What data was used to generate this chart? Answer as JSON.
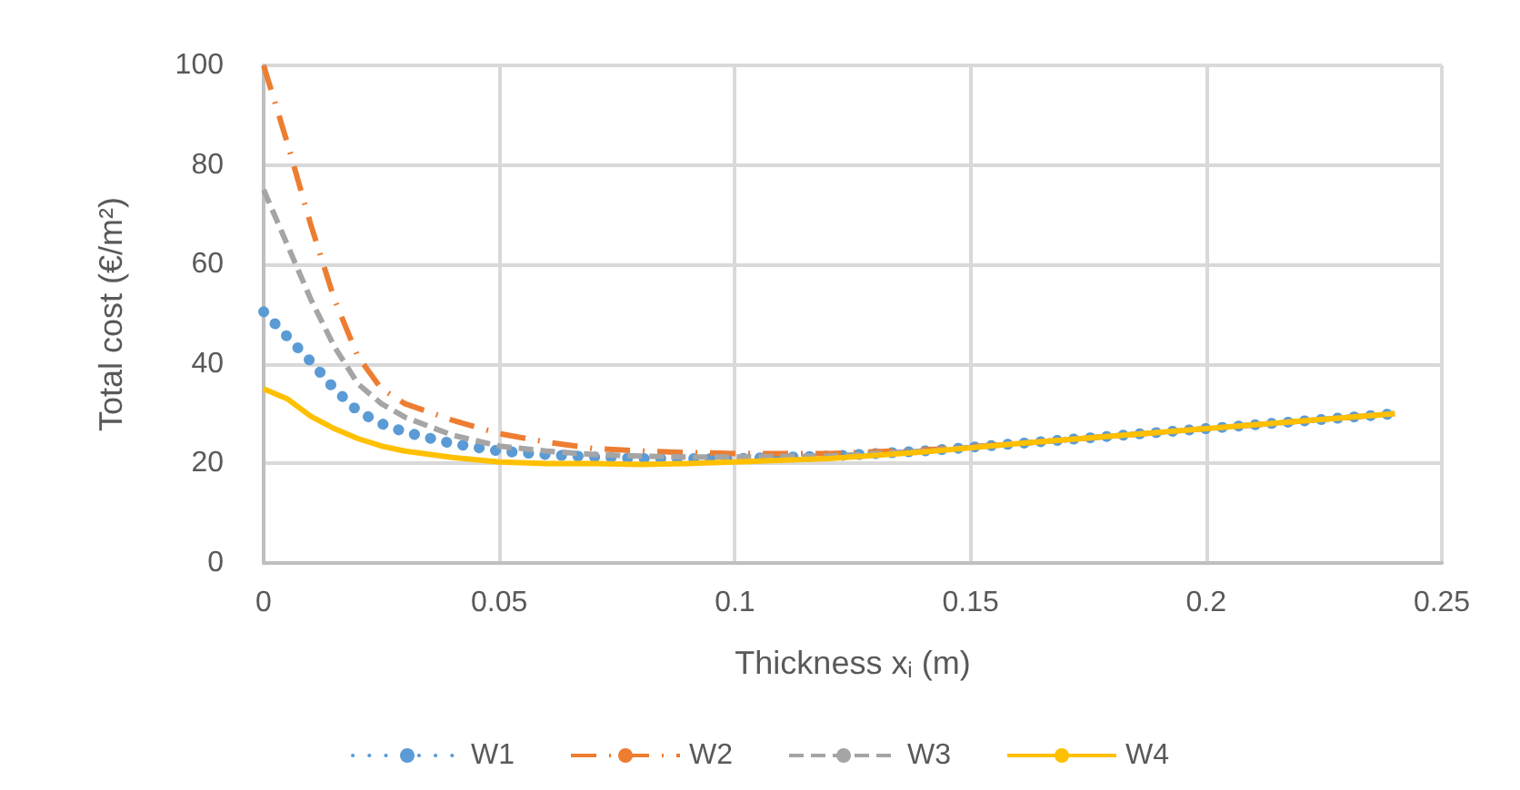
{
  "chart_data": {
    "type": "line",
    "xlabel": "Thickness x$_{i}$ (m)",
    "ylabel": "Total cost (€/m²)",
    "x": [
      0,
      0.005,
      0.01,
      0.015,
      0.02,
      0.025,
      0.03,
      0.04,
      0.05,
      0.06,
      0.07,
      0.08,
      0.09,
      0.1,
      0.12,
      0.14,
      0.16,
      0.18,
      0.2,
      0.22,
      0.24
    ],
    "series": [
      {
        "name": "W1",
        "color": "#5b9bd5",
        "line_style": "dotted",
        "values": [
          50.5,
          45.5,
          40.5,
          35,
          30.5,
          28,
          26.3,
          24,
          22.5,
          21.8,
          21.3,
          21,
          21,
          21,
          21.5,
          22.5,
          24,
          25.5,
          27,
          28.5,
          30
        ]
      },
      {
        "name": "W2",
        "color": "#ed7d31",
        "line_style": "dashdot",
        "values": [
          100,
          84.5,
          68,
          53,
          41.5,
          35,
          32,
          28.7,
          26,
          24.3,
          23,
          22.5,
          22.2,
          22,
          22,
          22.7,
          24,
          25.5,
          27,
          28.5,
          30
        ]
      },
      {
        "name": "W3",
        "color": "#a5a5a5",
        "line_style": "dashed",
        "values": [
          75,
          64,
          53,
          43.5,
          36,
          32,
          29.3,
          25.7,
          23.5,
          22.5,
          21.8,
          21.5,
          21.3,
          21.3,
          21.5,
          22.5,
          24,
          25.5,
          27,
          28.5,
          30
        ]
      },
      {
        "name": "W4",
        "color": "#ffc000",
        "line_style": "solid",
        "values": [
          35,
          33,
          29.5,
          27,
          25,
          23.5,
          22.5,
          21.2,
          20.3,
          20,
          20,
          19.8,
          20,
          20.3,
          21,
          22.3,
          24,
          25.5,
          27,
          28.5,
          30
        ]
      }
    ],
    "xlim": [
      0,
      0.25
    ],
    "xticks": [
      0,
      0.05,
      0.1,
      0.15,
      0.2,
      0.25
    ],
    "ylim": [
      0,
      100
    ],
    "yticks": [
      0,
      20,
      40,
      60,
      80,
      100
    ],
    "grid": true,
    "legend": "bottom",
    "marker": "none"
  }
}
